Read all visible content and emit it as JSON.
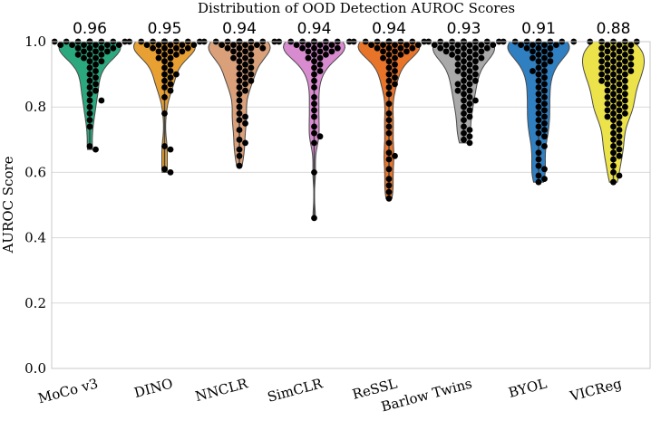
{
  "chart_data": {
    "type": "violin-swarm",
    "title": "Distribution of OOD Detection AUROC Scores",
    "xlabel": "",
    "ylabel": "AUROC Score",
    "ylim": [
      0.0,
      1.0
    ],
    "yticks": [
      "0.0",
      "0.2",
      "0.4",
      "0.6",
      "0.8",
      "1.0"
    ],
    "grid": true,
    "categories": [
      "MoCo v3",
      "DINO",
      "NNCLR",
      "SimCLR",
      "ReSSL",
      "Barlow Twins",
      "BYOL",
      "VICReg"
    ],
    "means": [
      "0.96",
      "0.95",
      "0.94",
      "0.94",
      "0.94",
      "0.93",
      "0.91",
      "0.88"
    ],
    "colors": [
      "#2ca87f",
      "#e8a033",
      "#d9a07a",
      "#d98bd0",
      "#e8742a",
      "#a9a9a9",
      "#2f7fc1",
      "#ece24a"
    ],
    "series": [
      {
        "name": "MoCo v3",
        "min": 0.67,
        "values": [
          1.0,
          1.0,
          1.0,
          1.0,
          1.0,
          1.0,
          1.0,
          1.0,
          1.0,
          1.0,
          1.0,
          1.0,
          0.99,
          0.99,
          0.99,
          0.99,
          0.99,
          0.99,
          0.98,
          0.98,
          0.98,
          0.98,
          0.97,
          0.97,
          0.97,
          0.96,
          0.96,
          0.96,
          0.95,
          0.95,
          0.94,
          0.94,
          0.93,
          0.92,
          0.91,
          0.9,
          0.89,
          0.88,
          0.87,
          0.86,
          0.85,
          0.84,
          0.82,
          0.82,
          0.8,
          0.78,
          0.76,
          0.74,
          0.68,
          0.67
        ]
      },
      {
        "name": "DINO",
        "min": 0.6,
        "values": [
          1.0,
          1.0,
          1.0,
          1.0,
          1.0,
          1.0,
          1.0,
          1.0,
          1.0,
          1.0,
          1.0,
          1.0,
          1.0,
          0.99,
          0.99,
          0.99,
          0.99,
          0.99,
          0.98,
          0.98,
          0.98,
          0.98,
          0.97,
          0.97,
          0.97,
          0.96,
          0.96,
          0.95,
          0.95,
          0.94,
          0.93,
          0.92,
          0.91,
          0.9,
          0.9,
          0.89,
          0.88,
          0.87,
          0.86,
          0.85,
          0.83,
          0.78,
          0.68,
          0.67,
          0.61,
          0.6
        ]
      },
      {
        "name": "NNCLR",
        "min": 0.62,
        "values": [
          1.0,
          1.0,
          1.0,
          1.0,
          1.0,
          1.0,
          1.0,
          1.0,
          1.0,
          1.0,
          1.0,
          1.0,
          0.99,
          0.99,
          0.99,
          0.99,
          0.98,
          0.98,
          0.98,
          0.98,
          0.97,
          0.97,
          0.96,
          0.96,
          0.95,
          0.95,
          0.94,
          0.94,
          0.93,
          0.92,
          0.92,
          0.91,
          0.9,
          0.9,
          0.89,
          0.88,
          0.88,
          0.87,
          0.86,
          0.85,
          0.84,
          0.82,
          0.8,
          0.78,
          0.77,
          0.76,
          0.75,
          0.73,
          0.7,
          0.69,
          0.67,
          0.65,
          0.62
        ]
      },
      {
        "name": "SimCLR",
        "min": 0.46,
        "values": [
          1.0,
          1.0,
          1.0,
          1.0,
          1.0,
          1.0,
          1.0,
          1.0,
          1.0,
          1.0,
          1.0,
          1.0,
          0.99,
          0.99,
          0.99,
          0.99,
          0.98,
          0.98,
          0.98,
          0.98,
          0.97,
          0.97,
          0.97,
          0.96,
          0.96,
          0.95,
          0.95,
          0.94,
          0.93,
          0.92,
          0.91,
          0.9,
          0.88,
          0.86,
          0.83,
          0.81,
          0.79,
          0.77,
          0.74,
          0.72,
          0.71,
          0.69,
          0.6,
          0.46
        ]
      },
      {
        "name": "ReSSL",
        "min": 0.52,
        "values": [
          1.0,
          1.0,
          1.0,
          1.0,
          1.0,
          1.0,
          1.0,
          1.0,
          1.0,
          1.0,
          1.0,
          1.0,
          1.0,
          0.99,
          0.99,
          0.99,
          0.99,
          0.99,
          0.98,
          0.98,
          0.98,
          0.98,
          0.97,
          0.97,
          0.97,
          0.96,
          0.96,
          0.95,
          0.95,
          0.94,
          0.93,
          0.92,
          0.91,
          0.9,
          0.89,
          0.88,
          0.87,
          0.86,
          0.84,
          0.81,
          0.78,
          0.76,
          0.74,
          0.72,
          0.69,
          0.66,
          0.65,
          0.64,
          0.61,
          0.58,
          0.56,
          0.54,
          0.52
        ]
      },
      {
        "name": "Barlow Twins",
        "min": 0.69,
        "values": [
          1.0,
          1.0,
          1.0,
          1.0,
          1.0,
          1.0,
          1.0,
          1.0,
          1.0,
          1.0,
          1.0,
          1.0,
          1.0,
          0.99,
          0.99,
          0.99,
          0.99,
          0.99,
          0.99,
          0.98,
          0.98,
          0.98,
          0.98,
          0.98,
          0.97,
          0.97,
          0.97,
          0.97,
          0.96,
          0.96,
          0.96,
          0.95,
          0.95,
          0.95,
          0.94,
          0.94,
          0.93,
          0.93,
          0.92,
          0.92,
          0.91,
          0.91,
          0.9,
          0.9,
          0.89,
          0.88,
          0.88,
          0.87,
          0.87,
          0.86,
          0.85,
          0.85,
          0.84,
          0.83,
          0.82,
          0.82,
          0.81,
          0.8,
          0.79,
          0.78,
          0.77,
          0.76,
          0.74,
          0.73,
          0.72,
          0.71,
          0.7,
          0.69
        ]
      },
      {
        "name": "BYOL",
        "min": 0.57,
        "values": [
          1.0,
          1.0,
          1.0,
          1.0,
          1.0,
          1.0,
          1.0,
          1.0,
          1.0,
          1.0,
          1.0,
          1.0,
          0.99,
          0.99,
          0.99,
          0.99,
          0.98,
          0.98,
          0.98,
          0.97,
          0.97,
          0.96,
          0.96,
          0.95,
          0.95,
          0.94,
          0.94,
          0.93,
          0.92,
          0.91,
          0.91,
          0.9,
          0.89,
          0.88,
          0.87,
          0.86,
          0.85,
          0.84,
          0.83,
          0.82,
          0.81,
          0.8,
          0.79,
          0.78,
          0.77,
          0.76,
          0.75,
          0.74,
          0.73,
          0.72,
          0.71,
          0.69,
          0.68,
          0.66,
          0.64,
          0.62,
          0.61,
          0.59,
          0.58,
          0.57
        ]
      },
      {
        "name": "VICReg",
        "min": 0.57,
        "values": [
          1.0,
          1.0,
          1.0,
          1.0,
          1.0,
          0.99,
          0.99,
          0.99,
          0.98,
          0.98,
          0.98,
          0.97,
          0.97,
          0.97,
          0.96,
          0.96,
          0.96,
          0.95,
          0.95,
          0.95,
          0.94,
          0.94,
          0.94,
          0.93,
          0.93,
          0.93,
          0.92,
          0.92,
          0.92,
          0.91,
          0.91,
          0.91,
          0.9,
          0.9,
          0.9,
          0.89,
          0.89,
          0.88,
          0.88,
          0.88,
          0.87,
          0.87,
          0.86,
          0.86,
          0.85,
          0.85,
          0.84,
          0.84,
          0.83,
          0.83,
          0.82,
          0.82,
          0.81,
          0.81,
          0.8,
          0.8,
          0.79,
          0.79,
          0.78,
          0.78,
          0.77,
          0.77,
          0.76,
          0.75,
          0.74,
          0.73,
          0.72,
          0.71,
          0.7,
          0.69,
          0.68,
          0.67,
          0.66,
          0.65,
          0.64,
          0.62,
          0.6,
          0.59,
          0.57
        ]
      }
    ]
  }
}
